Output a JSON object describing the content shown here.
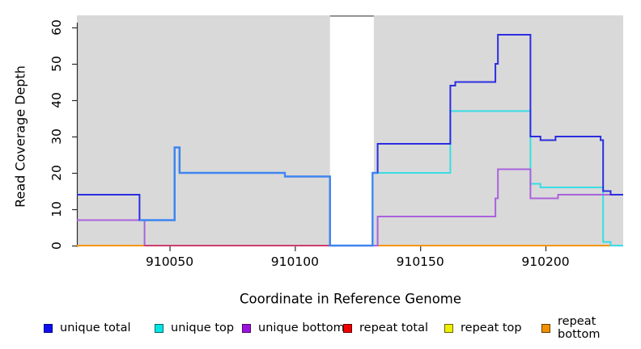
{
  "figure": {
    "background": "#ffffff",
    "plot_background": "#d9d9d9"
  },
  "axes": {
    "x": {
      "title": "Coordinate in Reference Genome",
      "tick_labels": [
        "910050",
        "910100",
        "910150",
        "910200"
      ],
      "tick_values": [
        910050,
        910100,
        910150,
        910200
      ],
      "range": [
        910013,
        910231
      ]
    },
    "y": {
      "title": "Read Coverage Depth",
      "tick_labels": [
        "0",
        "10",
        "20",
        "30",
        "40",
        "50",
        "60"
      ],
      "tick_values": [
        0,
        10,
        20,
        30,
        40,
        50,
        60
      ],
      "range": [
        0,
        63
      ]
    }
  },
  "chart_data": {
    "type": "line",
    "step_mode": "step-after",
    "x_end": 910231,
    "grid": false,
    "legend_position": "bottom",
    "gap_region": {
      "x0": 910114,
      "x1": 910131.5,
      "fill": "#ffffff",
      "top_border_color": "#7b7b7b"
    },
    "series": [
      {
        "name": "unique_total",
        "label": "unique total",
        "line_color": "#2b2de0",
        "legend_fill": "#0e0eee",
        "legend_border": "#000080",
        "points": [
          [
            910013,
            14
          ],
          [
            910038,
            7
          ],
          [
            910052,
            27
          ],
          [
            910054,
            20
          ],
          [
            910096,
            19
          ],
          [
            910114,
            0
          ],
          [
            910131,
            20
          ],
          [
            910133,
            28
          ],
          [
            910162,
            44
          ],
          [
            910164,
            45
          ],
          [
            910180,
            50
          ],
          [
            910181,
            58
          ],
          [
            910194,
            30
          ],
          [
            910198,
            29
          ],
          [
            910204,
            30
          ],
          [
            910222,
            29
          ],
          [
            910223,
            15
          ],
          [
            910226,
            14
          ]
        ]
      },
      {
        "name": "unique_top",
        "label": "unique top",
        "line_color": "#38dde4",
        "legend_fill": "#00e5e5",
        "legend_border": "#006666",
        "points": [
          [
            910013,
            7
          ],
          [
            910052,
            27
          ],
          [
            910054,
            20
          ],
          [
            910096,
            19
          ],
          [
            910114,
            0
          ],
          [
            910131,
            20
          ],
          [
            910162,
            37
          ],
          [
            910194,
            17
          ],
          [
            910198,
            16
          ],
          [
            910223,
            1
          ],
          [
            910226,
            0
          ]
        ]
      },
      {
        "name": "unique_bottom",
        "label": "unique bottom",
        "line_color": "#aa62dd",
        "legend_fill": "#9c12dd",
        "legend_border": "#4b0966",
        "points": [
          [
            910013,
            7
          ],
          [
            910040,
            0
          ],
          [
            910133,
            8
          ],
          [
            910180,
            13
          ],
          [
            910181,
            21
          ],
          [
            910194,
            13
          ],
          [
            910205,
            14
          ]
        ]
      },
      {
        "name": "repeat_total",
        "label": "repeat total",
        "line_color": "#e00000",
        "legend_fill": "#ee0000",
        "legend_border": "#660000",
        "points": [
          [
            910013,
            0
          ]
        ]
      },
      {
        "name": "repeat_top",
        "label": "repeat top",
        "line_color": "#e8e800",
        "legend_fill": "#efef00",
        "legend_border": "#666600",
        "points": [
          [
            910013,
            0
          ]
        ]
      },
      {
        "name": "repeat_bottom",
        "label": "repeat bottom",
        "line_color": "#f5950f",
        "legend_fill": "#ef9100",
        "legend_border": "#663d00",
        "points": [
          [
            910013,
            0
          ]
        ]
      }
    ],
    "draw_order": [
      "repeat_top",
      "repeat_total",
      "repeat_bottom",
      "unique_top",
      "unique_bottom",
      "unique_total"
    ],
    "overlap_blends": [
      {
        "name": "bottom-overlap-crimson",
        "color": "#cc3d6e",
        "width": 2,
        "points": [
          [
            910040,
            0
          ]
        ],
        "x_end": 910114
      },
      {
        "name": "blue-cyan-overlap",
        "color": "#3e85f0",
        "width": 2.4,
        "points": [
          [
            910038,
            7
          ],
          [
            910052,
            27
          ],
          [
            910054,
            20
          ],
          [
            910096,
            19
          ],
          [
            910114,
            0
          ],
          [
            910131,
            20
          ]
        ],
        "x_end": 910133
      }
    ]
  }
}
